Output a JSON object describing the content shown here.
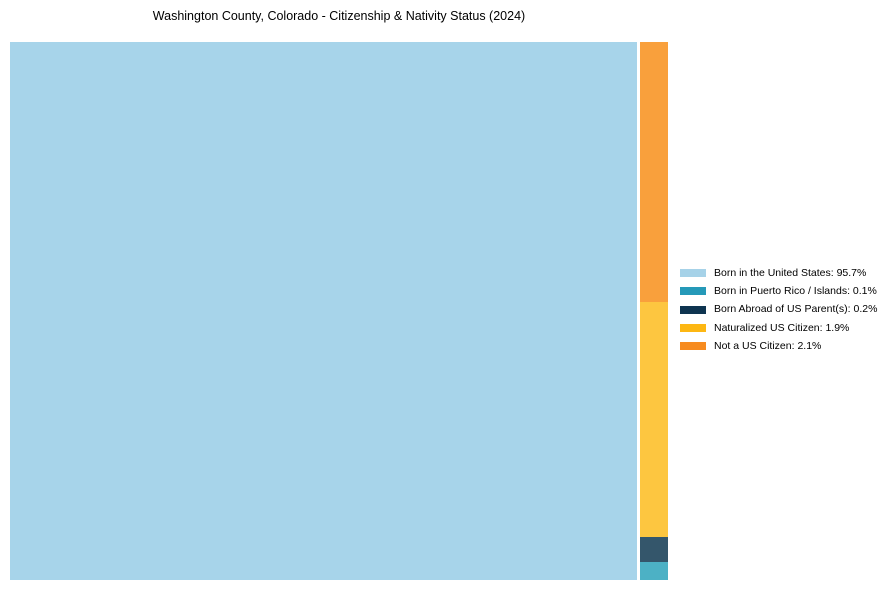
{
  "title": "Washington County, Colorado - Citizenship & Nativity Status (2024)",
  "chart_data": {
    "type": "treemap",
    "title": "Washington County, Colorado - Citizenship & Nativity Status (2024)",
    "categories": [
      "Born in the United States",
      "Born in Puerto Rico / Islands",
      "Born Abroad of US Parent(s)",
      "Naturalized US Citizen",
      "Not a US Citizen"
    ],
    "values": [
      95.7,
      0.1,
      0.2,
      1.9,
      2.1
    ],
    "unit": "%",
    "layout": "large US-born block fills left side; minor categories stacked in narrow right column top-to-bottom: Not a US Citizen, Naturalized US Citizen, Born Abroad of US Parent(s), Born in Puerto Rico / Islands",
    "block_colors": [
      "#a7d4ea",
      "#4cb1c5",
      "#34566b",
      "#fdc640",
      "#f9a03c"
    ],
    "legend_colors": [
      "#a6d2e8",
      "#2599b8",
      "#0e3450",
      "#fdb713",
      "#f78b1f"
    ],
    "legend_position": "right-center",
    "grid": false,
    "axes": false,
    "background_color": "#ffffff"
  },
  "legend": {
    "items": [
      {
        "label": "Born in the United States: 95.7%",
        "swatch_color": "#a6d2e8",
        "block_color": "#a7d4ea"
      },
      {
        "label": "Born in Puerto Rico / Islands: 0.1%",
        "swatch_color": "#2599b8",
        "block_color": "#4cb1c5"
      },
      {
        "label": "Born Abroad of US Parent(s): 0.2%",
        "swatch_color": "#0e3450",
        "block_color": "#34566b"
      },
      {
        "label": "Naturalized US Citizen: 1.9%",
        "swatch_color": "#fdb713",
        "block_color": "#fdc640"
      },
      {
        "label": "Not a US Citizen: 2.1%",
        "swatch_color": "#f78b1f",
        "block_color": "#f9a03c"
      }
    ]
  }
}
